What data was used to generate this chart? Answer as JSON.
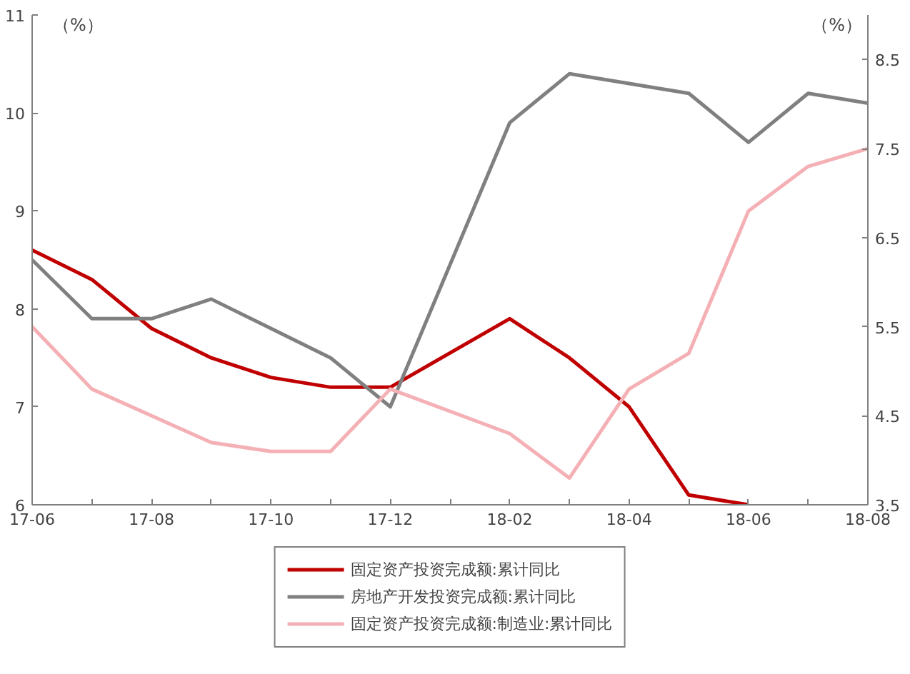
{
  "chart_data": {
    "type": "line",
    "categories": [
      "17-06",
      null,
      "17-08",
      null,
      "17-10",
      null,
      "17-12",
      null,
      "18-02",
      null,
      "18-04",
      null,
      "18-06",
      null,
      "18-08"
    ],
    "ylabel": "（%）",
    "y2label": "（%）",
    "ylim": [
      6,
      11
    ],
    "yticks": [
      6,
      7,
      8,
      9,
      10,
      11
    ],
    "y2lim": [
      3.5,
      9.0
    ],
    "y2ticks": [
      3.5,
      4.5,
      5.5,
      6.5,
      7.5,
      8.5
    ],
    "series": [
      {
        "name": "固定资产投资完成额:累计同比",
        "color": "#c00000",
        "values": [
          8.6,
          8.3,
          7.8,
          7.5,
          7.3,
          7.2,
          7.2,
          null,
          7.9,
          7.5,
          7.0,
          6.1,
          6.0,
          null,
          null
        ]
      },
      {
        "name": "房地产开发投资完成额:累计同比",
        "color": "#808080",
        "values": [
          8.5,
          7.9,
          7.9,
          8.1,
          7.8,
          7.5,
          7.0,
          null,
          9.9,
          10.4,
          10.3,
          10.2,
          9.7,
          10.2,
          10.1
        ]
      },
      {
        "name": "固定资产投资完成额:制造业:累计同比",
        "color": "#f4b0b4",
        "axis": "y2",
        "values": [
          5.5,
          4.8,
          4.5,
          4.2,
          4.1,
          4.1,
          4.8,
          null,
          4.3,
          3.8,
          4.8,
          5.2,
          6.8,
          7.3,
          7.5
        ]
      }
    ],
    "grid": false,
    "legend": "bottom",
    "line_style": "solid"
  }
}
